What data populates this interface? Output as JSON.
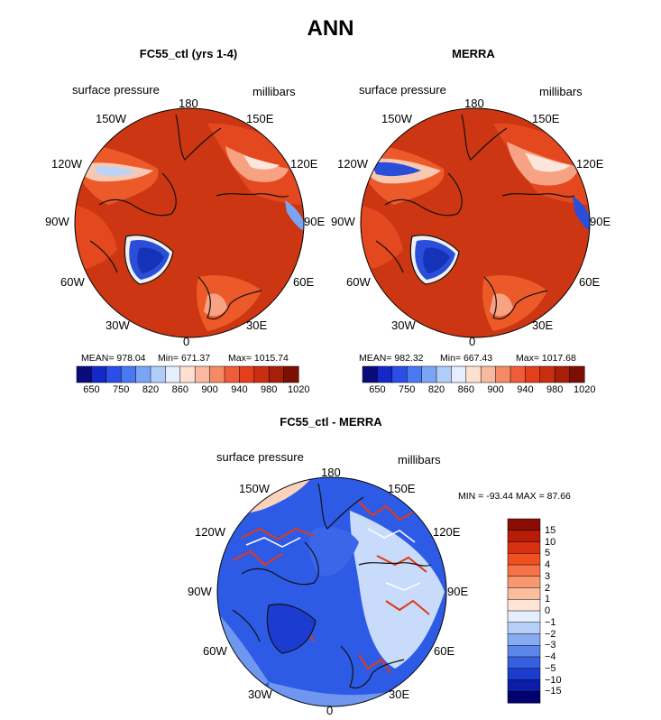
{
  "page_title": "ANN",
  "panels": [
    {
      "title": "FC55_ctl (yrs 1-4)",
      "field_label": "surface pressure",
      "units_label": "millibars",
      "stats": {
        "mean": "MEAN= 978.04",
        "min": "Min= 671.37",
        "max": "Max= 1015.74"
      }
    },
    {
      "title": "MERRA",
      "field_label": "surface pressure",
      "units_label": "millibars",
      "stats": {
        "mean": "MEAN= 982.32",
        "min": "Min= 667.43",
        "max": "Max= 1017.68"
      }
    }
  ],
  "diff_panel": {
    "title": "FC55_ctl - MERRA",
    "field_label": "surface pressure",
    "units_label": "millibars",
    "minmax_text": "MIN = -93.44 MAX = 87.66"
  },
  "longitude_labels": {
    "top": "180",
    "upper_left": "150W",
    "upper_right": "150E",
    "left_upper": "120W",
    "right_upper": "120E",
    "left": "90W",
    "right": "90E",
    "left_lower": "60W",
    "right_lower": "60E",
    "lower_left": "30W",
    "lower_right": "30E",
    "bottom": "0"
  },
  "colorbar_main": {
    "tick_labels": [
      "650",
      "750",
      "820",
      "860",
      "900",
      "940",
      "980",
      "1020"
    ],
    "colors": [
      "#0a0a7a",
      "#1428c8",
      "#2b4fe6",
      "#4a78f0",
      "#7ca4f5",
      "#b0ccf8",
      "#e4eefc",
      "#fde0d0",
      "#f9b9a0",
      "#f48a66",
      "#ee5c38",
      "#e43e1a",
      "#c92e10",
      "#a81f08",
      "#7c0f04"
    ]
  },
  "colorbar_diff": {
    "tick_labels": [
      "15",
      "10",
      "5",
      "4",
      "3",
      "2",
      "1",
      "0",
      "−1",
      "−2",
      "−3",
      "−4",
      "−5",
      "−10",
      "−15"
    ],
    "colors": [
      "#8a0c04",
      "#b71c08",
      "#d83010",
      "#f0501e",
      "#f47448",
      "#f79870",
      "#fbbd9e",
      "#fde4d4",
      "#e4eefc",
      "#b6cff6",
      "#86abf0",
      "#5b86ea",
      "#3560e0",
      "#1c3cd0",
      "#0c1ea8",
      "#00006e"
    ]
  },
  "map_colors": {
    "land_high": "#d23a12",
    "land_mid": "#ec5a2a",
    "land_light": "#f6a283",
    "land_pale": "#fad6c5",
    "ice_blue": "#2a4ed8",
    "ice_light": "#7ca4f5",
    "diff_base": "#2e5be6",
    "diff_light": "#6f97f0",
    "diff_pale": "#c8dbfa",
    "coast": "#111111"
  }
}
